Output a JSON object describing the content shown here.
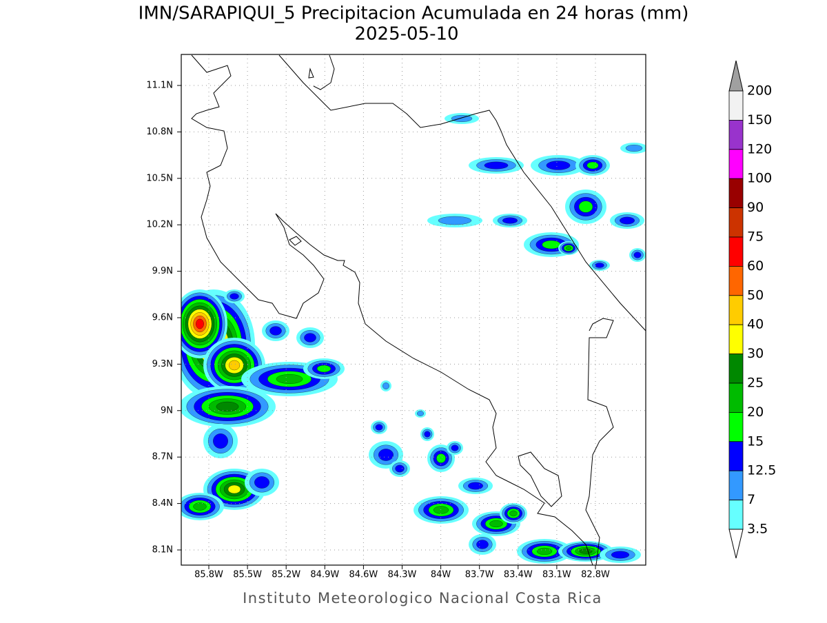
{
  "title": "IMN/SARAPIQUI_5 Precipitacion Acumulada en 24 horas (mm)",
  "subtitle": "2025-05-10",
  "footer": "Instituto Meteorologico Nacional Costa Rica",
  "lat_labels": [
    "11.1N",
    "10.8N",
    "10.5N",
    "10.2N",
    "9.9N",
    "9.6N",
    "9.3N",
    "9N",
    "8.7N",
    "8.4N",
    "8.1N"
  ],
  "lon_labels": [
    "85.8W",
    "85.5W",
    "85.2W",
    "84.9W",
    "84.6W",
    "84.3W",
    "84W",
    "83.7W",
    "83.4W",
    "83.1W",
    "82.8W"
  ],
  "colorbar": {
    "levels": [
      200,
      150,
      120,
      100,
      90,
      75,
      60,
      50,
      40,
      30,
      25,
      20,
      15,
      12.5,
      7,
      3.5
    ],
    "colors": [
      "#a0a0a0",
      "#f2f2f2",
      "#9933cc",
      "#ff00ff",
      "#990000",
      "#cc3300",
      "#ff0000",
      "#ff6600",
      "#ffcc00",
      "#ffff00",
      "#008800",
      "#00bb00",
      "#00ff00",
      "#0000ff",
      "#3399ff",
      "#66ffff",
      "#ffffff"
    ]
  }
}
